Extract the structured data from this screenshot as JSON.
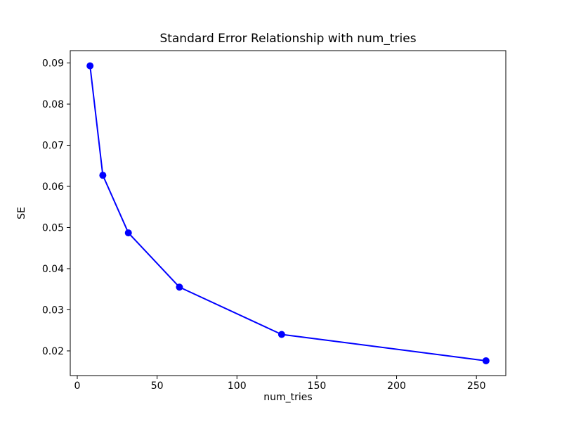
{
  "figure": {
    "background": "#ffffff"
  },
  "chart_data": {
    "type": "line",
    "title": "Standard Error Relationship with num_tries",
    "xlabel": "num_tries",
    "ylabel": "SE",
    "x": [
      8,
      16,
      32,
      64,
      128,
      256
    ],
    "y": [
      0.0893,
      0.0627,
      0.0487,
      0.0355,
      0.024,
      0.0176
    ],
    "series": [
      {
        "name": "SE",
        "x": [
          8,
          16,
          32,
          64,
          128,
          256
        ],
        "values": [
          0.0893,
          0.0627,
          0.0487,
          0.0355,
          0.024,
          0.0176
        ]
      }
    ],
    "line_color": "#0000ff",
    "marker": "circle",
    "marker_color": "#0000ff",
    "xlim": [
      -4.4,
      268.4
    ],
    "ylim": [
      0.014,
      0.093
    ],
    "xticks": [
      0,
      50,
      100,
      150,
      200,
      250
    ],
    "xtick_labels": [
      "0",
      "50",
      "100",
      "150",
      "200",
      "250"
    ],
    "yticks": [
      0.02,
      0.03,
      0.04,
      0.05,
      0.06,
      0.07,
      0.08,
      0.09
    ],
    "ytick_labels": [
      "0.02",
      "0.03",
      "0.04",
      "0.05",
      "0.06",
      "0.07",
      "0.08",
      "0.09"
    ],
    "grid": false,
    "legend": "none",
    "axis_color": "#000000"
  }
}
